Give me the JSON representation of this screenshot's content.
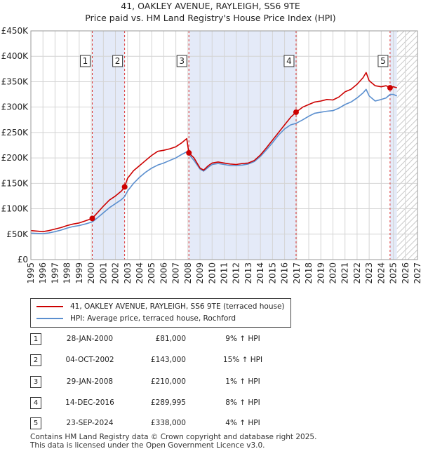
{
  "title_line1": "41, OAKLEY AVENUE, RAYLEIGH, SS6 9TE",
  "title_line2": "Price paid vs. HM Land Registry's House Price Index (HPI)",
  "legend": {
    "property_label": "41, OAKLEY AVENUE, RAYLEIGH, SS6 9TE (terraced house)",
    "hpi_label": "HPI: Average price, terraced house, Rochford"
  },
  "colors": {
    "property": "#cc0000",
    "hpi": "#5b8fcf",
    "shade": "#e4eaf8",
    "vline": "#dd3333"
  },
  "chart_data": {
    "type": "line",
    "title": "41, OAKLEY AVENUE, RAYLEIGH, SS6 9TE — Price paid vs. HM Land Registry's House Price Index (HPI)",
    "xlim": [
      1995,
      2027
    ],
    "ylim": [
      0,
      450000
    ],
    "x_ticks": [
      "1995",
      "1996",
      "1997",
      "1998",
      "1999",
      "2000",
      "2001",
      "2002",
      "2003",
      "2004",
      "2005",
      "2006",
      "2007",
      "2008",
      "2009",
      "2010",
      "2011",
      "2012",
      "2013",
      "2014",
      "2015",
      "2016",
      "2017",
      "2018",
      "2019",
      "2020",
      "2021",
      "2022",
      "2023",
      "2024",
      "2025",
      "2026",
      "2027"
    ],
    "y_ticks": [
      {
        "value": 0,
        "label": "£0"
      },
      {
        "value": 50000,
        "label": "£50K"
      },
      {
        "value": 100000,
        "label": "£100K"
      },
      {
        "value": 150000,
        "label": "£150K"
      },
      {
        "value": 200000,
        "label": "£200K"
      },
      {
        "value": 250000,
        "label": "£250K"
      },
      {
        "value": 300000,
        "label": "£300K"
      },
      {
        "value": 350000,
        "label": "£350K"
      },
      {
        "value": 400000,
        "label": "£400K"
      },
      {
        "value": 450000,
        "label": "£450K"
      }
    ],
    "shaded_periods": [
      [
        2000.08,
        2002.76
      ],
      [
        2008.08,
        2016.95
      ],
      [
        2024.73,
        2025.3
      ]
    ],
    "hatched_from": 2025.3,
    "series": [
      {
        "name": "41, OAKLEY AVENUE, RAYLEIGH, SS6 9TE (terraced house)",
        "x": [
          1995.0,
          1995.5,
          1996.0,
          1996.5,
          1997.0,
          1997.5,
          1998.0,
          1998.5,
          1999.0,
          1999.5,
          2000.08,
          2000.5,
          2001.0,
          2001.5,
          2002.0,
          2002.5,
          2002.76,
          2003.0,
          2003.5,
          2004.0,
          2004.5,
          2005.0,
          2005.5,
          2006.0,
          2006.5,
          2007.0,
          2007.5,
          2007.9,
          2008.08,
          2008.5,
          2009.0,
          2009.3,
          2009.7,
          2010.0,
          2010.5,
          2011.0,
          2011.5,
          2012.0,
          2012.5,
          2013.0,
          2013.5,
          2014.0,
          2014.5,
          2015.0,
          2015.5,
          2016.0,
          2016.5,
          2016.95,
          2017.5,
          2018.0,
          2018.5,
          2019.0,
          2019.5,
          2020.0,
          2020.5,
          2021.0,
          2021.5,
          2022.0,
          2022.5,
          2022.75,
          2023.0,
          2023.5,
          2024.0,
          2024.4,
          2024.73,
          2025.0,
          2025.3
        ],
        "y": [
          57000,
          56000,
          55000,
          57000,
          60000,
          63000,
          67000,
          70000,
          72000,
          76000,
          81000,
          92000,
          105000,
          117000,
          125000,
          135000,
          143000,
          160000,
          175000,
          185000,
          195000,
          205000,
          213000,
          215000,
          218000,
          222000,
          230000,
          238000,
          210000,
          200000,
          180000,
          176000,
          185000,
          190000,
          192000,
          190000,
          188000,
          187000,
          189000,
          190000,
          195000,
          206000,
          220000,
          235000,
          250000,
          265000,
          280000,
          289995,
          300000,
          305000,
          310000,
          312000,
          315000,
          314000,
          320000,
          330000,
          335000,
          345000,
          358000,
          368000,
          352000,
          342000,
          340000,
          342000,
          338000,
          340000,
          338000
        ]
      },
      {
        "name": "HPI: Average price, terraced house, Rochford",
        "x": [
          1995.0,
          1995.5,
          1996.0,
          1996.5,
          1997.0,
          1997.5,
          1998.0,
          1998.5,
          1999.0,
          1999.5,
          2000.08,
          2000.5,
          2001.0,
          2001.5,
          2002.0,
          2002.5,
          2002.76,
          2003.0,
          2003.5,
          2004.0,
          2004.5,
          2005.0,
          2005.5,
          2006.0,
          2006.5,
          2007.0,
          2007.5,
          2007.9,
          2008.08,
          2008.5,
          2009.0,
          2009.3,
          2009.7,
          2010.0,
          2010.5,
          2011.0,
          2011.5,
          2012.0,
          2012.5,
          2013.0,
          2013.5,
          2014.0,
          2014.5,
          2015.0,
          2015.5,
          2016.0,
          2016.5,
          2016.95,
          2017.5,
          2018.0,
          2018.5,
          2019.0,
          2019.5,
          2020.0,
          2020.5,
          2021.0,
          2021.5,
          2022.0,
          2022.5,
          2022.75,
          2023.0,
          2023.5,
          2024.0,
          2024.4,
          2024.73,
          2025.0,
          2025.3
        ],
        "y": [
          52000,
          51500,
          51000,
          52500,
          55000,
          58000,
          62000,
          65000,
          67000,
          70000,
          74000,
          82000,
          92000,
          102000,
          110000,
          118000,
          124000,
          135000,
          150000,
          162000,
          172000,
          180000,
          186000,
          190000,
          195000,
          200000,
          207000,
          212000,
          207000,
          195000,
          178000,
          174000,
          182000,
          187000,
          189000,
          187000,
          185000,
          185000,
          186000,
          188000,
          193000,
          203000,
          216000,
          230000,
          245000,
          257000,
          265000,
          268000,
          275000,
          282000,
          288000,
          290000,
          292000,
          293000,
          298000,
          305000,
          310000,
          318000,
          328000,
          335000,
          322000,
          312000,
          315000,
          318000,
          325000,
          325000,
          322000
        ]
      }
    ],
    "sales": [
      {
        "n": "1",
        "date": "28-JAN-2000",
        "x": 2000.08,
        "price": 81000,
        "price_label": "£81,000",
        "hpi": "9% ↑ HPI"
      },
      {
        "n": "2",
        "date": "04-OCT-2002",
        "x": 2002.76,
        "price": 143000,
        "price_label": "£143,000",
        "hpi": "15% ↑ HPI"
      },
      {
        "n": "3",
        "date": "29-JAN-2008",
        "x": 2008.08,
        "price": 210000,
        "price_label": "£210,000",
        "hpi": "1% ↑ HPI"
      },
      {
        "n": "4",
        "date": "14-DEC-2016",
        "x": 2016.95,
        "price": 289995,
        "price_label": "£289,995",
        "hpi": "8% ↑ HPI"
      },
      {
        "n": "5",
        "date": "23-SEP-2024",
        "x": 2024.73,
        "price": 338000,
        "price_label": "£338,000",
        "hpi": "4% ↑ HPI"
      }
    ]
  },
  "footer_line1": "Contains HM Land Registry data © Crown copyright and database right 2025.",
  "footer_line2": "This data is licensed under the Open Government Licence v3.0."
}
